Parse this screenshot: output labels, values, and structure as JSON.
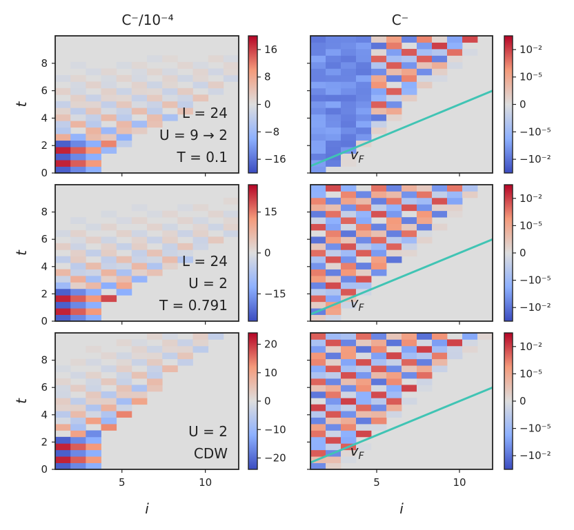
{
  "figure": {
    "column_titles": [
      "C⁻/10⁻⁴",
      "C⁻"
    ],
    "x_label": "i",
    "y_label": "t",
    "x_ticks": [
      5,
      10
    ],
    "y_ticks": [
      0,
      2,
      4,
      6,
      8
    ],
    "vf_label": "vF",
    "vf_main": "v",
    "vf_sub": "F"
  },
  "chart_data": [
    {
      "type": "heatmap",
      "panel": "row1-left",
      "title": "C⁻/10⁻⁴",
      "xlabel": "",
      "ylabel": "t",
      "xlim": [
        1,
        12
      ],
      "ylim": [
        0,
        10
      ],
      "annotation": [
        "L = 24",
        "U = 9 → 2",
        "T = 0.1"
      ],
      "colorbar_ticks": [
        "16",
        "8",
        "0",
        "−8",
        "−16"
      ],
      "colorbar_range": [
        -20,
        20
      ],
      "scale": "linear",
      "front_slope": 0.3
    },
    {
      "type": "heatmap",
      "panel": "row1-right",
      "title": "C⁻",
      "xlabel": "",
      "ylabel": "",
      "xlim": [
        1,
        12
      ],
      "ylim": [
        0,
        10
      ],
      "fermi_line": {
        "label": "vF",
        "i": [
          1,
          12
        ],
        "t": [
          0.5,
          6.0
        ]
      },
      "colorbar_ticks": [
        "10⁻²",
        "10⁻⁵",
        "0",
        "−10⁻⁵",
        "−10⁻²"
      ],
      "scale": "symlog",
      "front_slope": 0.5
    },
    {
      "type": "heatmap",
      "panel": "row2-left",
      "title": "",
      "xlabel": "",
      "ylabel": "t",
      "xlim": [
        1,
        12
      ],
      "ylim": [
        0,
        10
      ],
      "annotation": [
        "L = 24",
        "U = 2",
        "T = 0.791"
      ],
      "colorbar_ticks": [
        "15",
        "0",
        "−15"
      ],
      "colorbar_range": [
        -25,
        25
      ],
      "scale": "linear",
      "front_slope": 0.3
    },
    {
      "type": "heatmap",
      "panel": "row2-right",
      "title": "",
      "xlabel": "",
      "ylabel": "",
      "xlim": [
        1,
        12
      ],
      "ylim": [
        0,
        10
      ],
      "fermi_line": {
        "label": "vF",
        "i": [
          1,
          12
        ],
        "t": [
          0.5,
          6.0
        ]
      },
      "colorbar_ticks": [
        "10⁻²",
        "10⁻⁵",
        "0",
        "−10⁻⁵",
        "−10⁻²"
      ],
      "scale": "symlog",
      "front_slope": 0.5
    },
    {
      "type": "heatmap",
      "panel": "row3-left",
      "title": "",
      "xlabel": "i",
      "ylabel": "t",
      "xlim": [
        1,
        12
      ],
      "ylim": [
        0,
        10
      ],
      "annotation": [
        "U = 2",
        "CDW"
      ],
      "colorbar_ticks": [
        "20",
        "10",
        "0",
        "−10",
        "−20"
      ],
      "colorbar_range": [
        -24,
        24
      ],
      "scale": "linear",
      "front_slope": 0.5
    },
    {
      "type": "heatmap",
      "panel": "row3-right",
      "title": "",
      "xlabel": "i",
      "ylabel": "",
      "xlim": [
        1,
        12
      ],
      "ylim": [
        0,
        10
      ],
      "fermi_line": {
        "label": "vF",
        "i": [
          1,
          12
        ],
        "t": [
          0.5,
          6.0
        ]
      },
      "colorbar_ticks": [
        "10⁻²",
        "10⁻⁵",
        "0",
        "−10⁻⁵",
        "−10⁻²"
      ],
      "scale": "symlog",
      "front_slope": 0.5
    }
  ]
}
